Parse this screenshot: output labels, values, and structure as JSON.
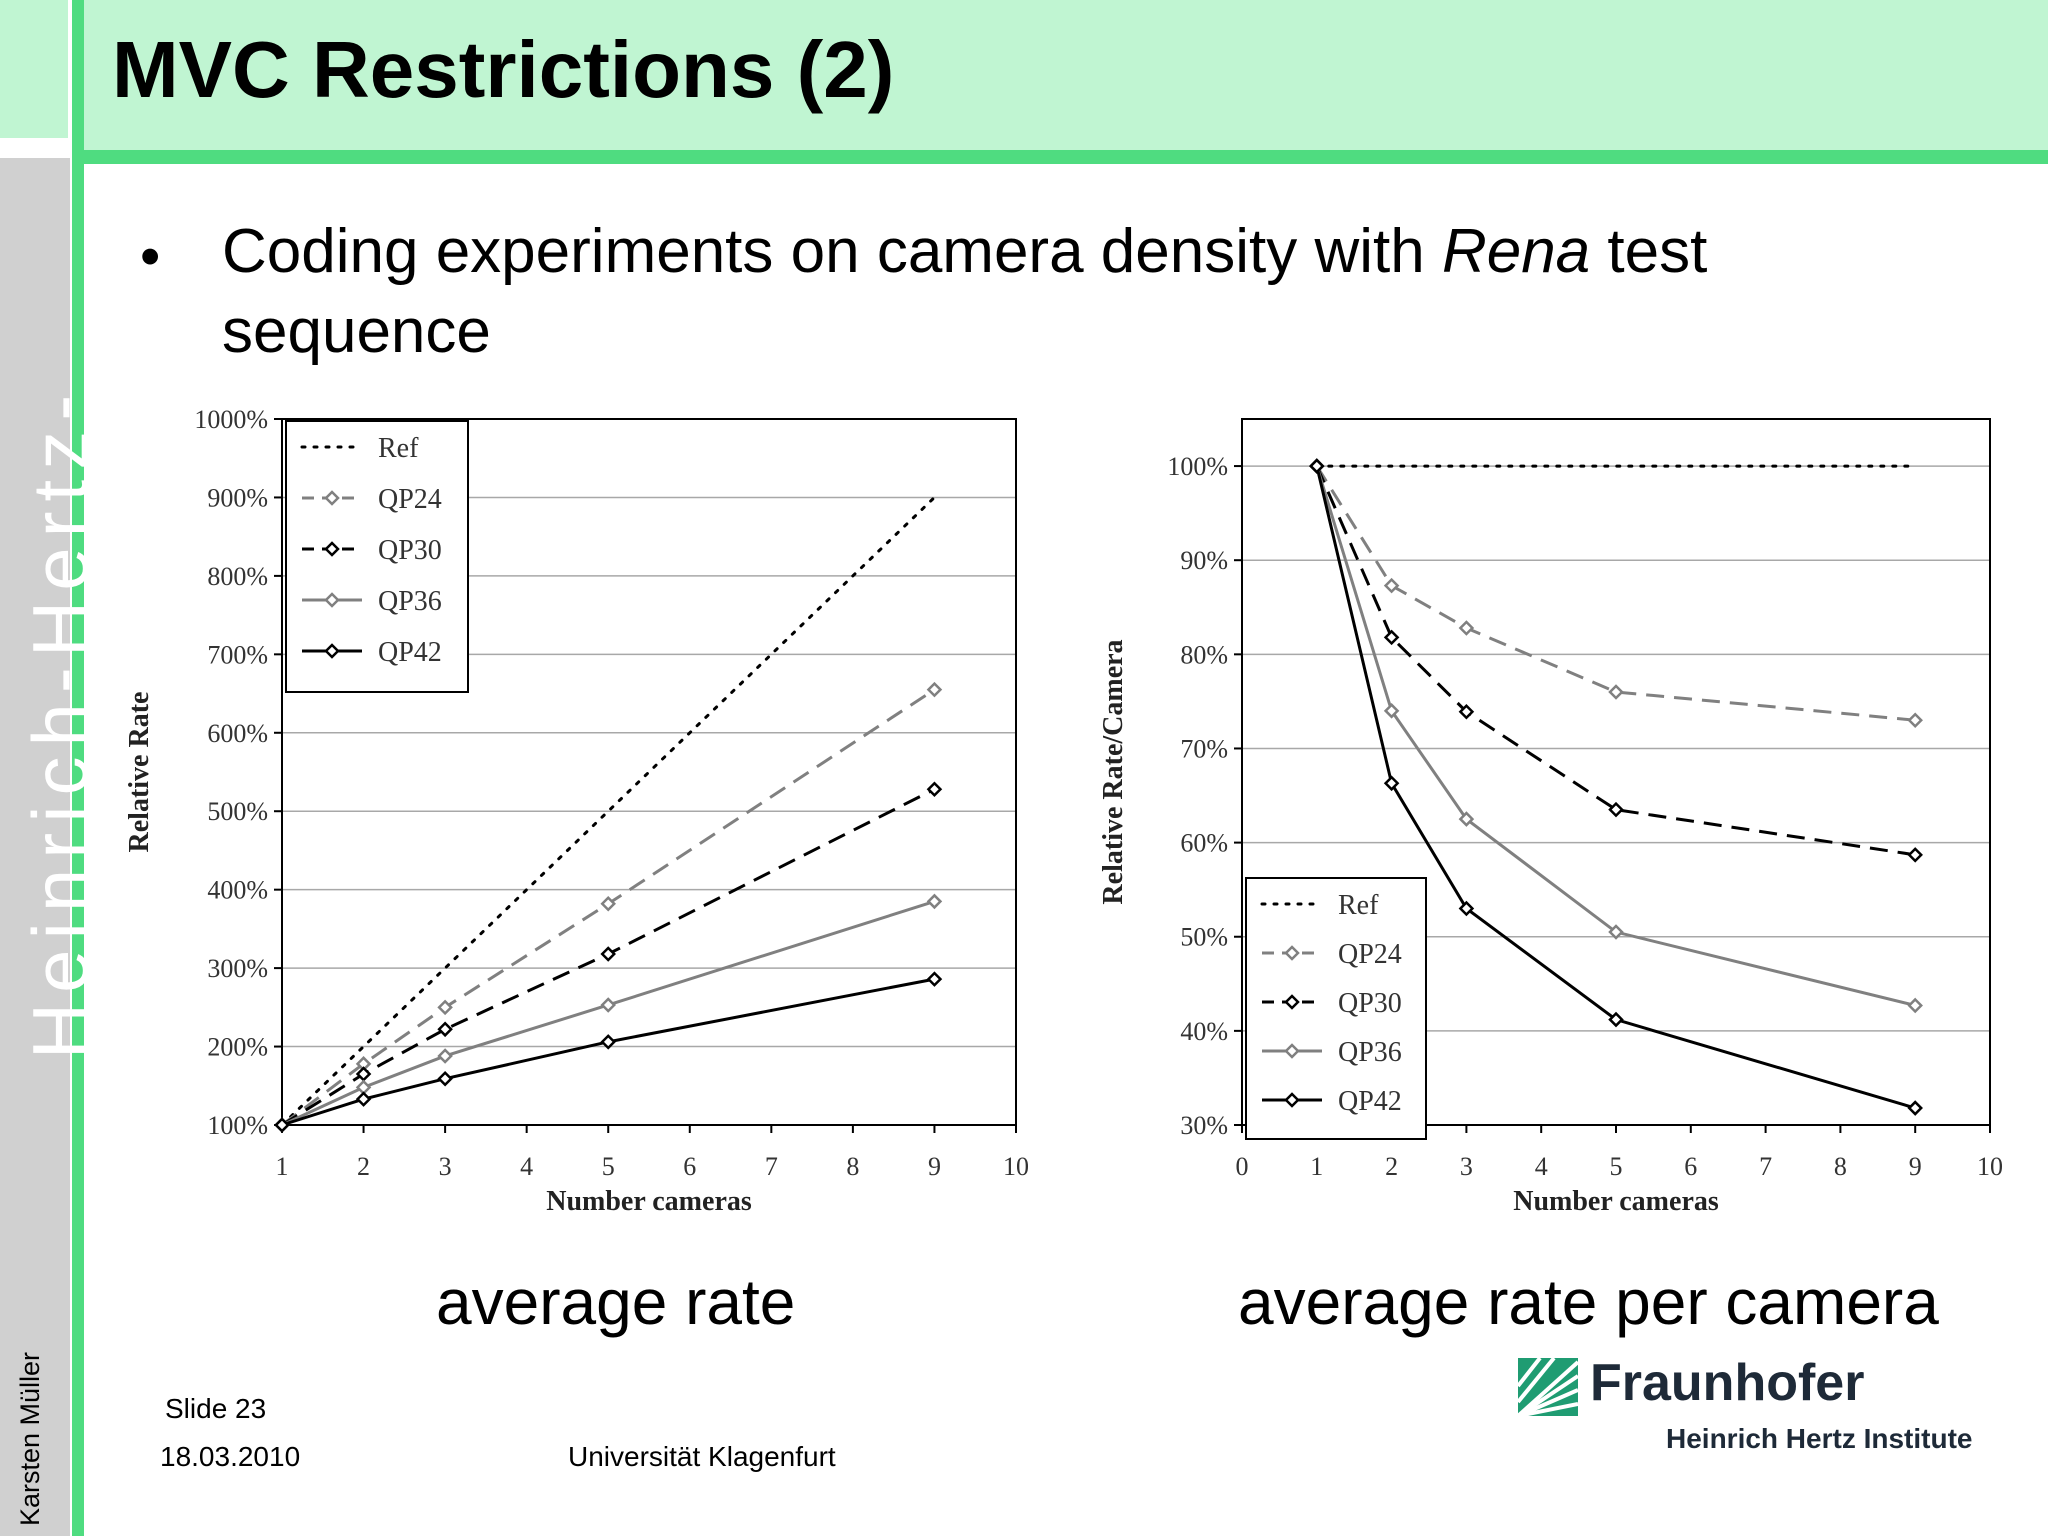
{
  "slide": {
    "title": "MVC Restrictions (2)",
    "bullet_text_before": "Coding experiments on camera density with ",
    "bullet_text_italic": "Rena",
    "bullet_text_after": " test sequence",
    "caption_left": "average rate",
    "caption_right": "average rate per camera",
    "sidebar_institute": "Heinrich-Hertz-Institut",
    "sidebar_author": "Karsten Müller",
    "footer": {
      "slide_number": "Slide 23",
      "date": "18.03.2010",
      "university": "Universität Klagenfurt"
    },
    "logo": {
      "name": "Fraunhofer",
      "subtitle": "Heinrich Hertz Institute"
    }
  },
  "chart_data": [
    {
      "type": "line",
      "title": "",
      "xlabel": "Number cameras",
      "ylabel": "Relative Rate",
      "xlim": [
        1,
        10
      ],
      "ylim": [
        100,
        1000
      ],
      "xticks": [
        "1",
        "2",
        "3",
        "4",
        "5",
        "6",
        "7",
        "8",
        "9",
        "10"
      ],
      "yticks": [
        "100%",
        "200%",
        "300%",
        "400%",
        "500%",
        "600%",
        "700%",
        "800%",
        "900%",
        "1000%"
      ],
      "grid": true,
      "legend_position": "top-left",
      "x": [
        1,
        2,
        3,
        5,
        9
      ],
      "series": [
        {
          "name": "Ref",
          "values": [
            100,
            200,
            300,
            500,
            900
          ],
          "color": "#000000",
          "dash": "dotted",
          "markers": false
        },
        {
          "name": "QP24",
          "values": [
            100,
            178,
            250,
            382,
            655
          ],
          "color": "#808080",
          "dash": "dashed",
          "markers": true
        },
        {
          "name": "QP30",
          "values": [
            100,
            165,
            222,
            318,
            528
          ],
          "color": "#000000",
          "dash": "dashed",
          "markers": true
        },
        {
          "name": "QP36",
          "values": [
            100,
            148,
            188,
            253,
            385
          ],
          "color": "#808080",
          "dash": "solid",
          "markers": true
        },
        {
          "name": "QP42",
          "values": [
            100,
            133,
            159,
            206,
            286
          ],
          "color": "#000000",
          "dash": "solid",
          "markers": true
        }
      ]
    },
    {
      "type": "line",
      "title": "",
      "xlabel": "Number cameras",
      "ylabel": "Relative Rate/Camera",
      "xlim": [
        0,
        10
      ],
      "ylim": [
        30,
        105
      ],
      "xticks": [
        "0",
        "1",
        "2",
        "3",
        "4",
        "5",
        "6",
        "7",
        "8",
        "9",
        "10"
      ],
      "yticks": [
        "30%",
        "40%",
        "50%",
        "60%",
        "70%",
        "80%",
        "90%",
        "100%"
      ],
      "grid": true,
      "legend_position": "bottom-left",
      "x": [
        1,
        2,
        3,
        5,
        9
      ],
      "series": [
        {
          "name": "Ref",
          "values": [
            100,
            100,
            100,
            100,
            100
          ],
          "color": "#000000",
          "dash": "dotted",
          "markers": false
        },
        {
          "name": "QP24",
          "values": [
            100,
            87.3,
            82.8,
            76.0,
            73.0
          ],
          "color": "#808080",
          "dash": "dashed",
          "markers": true
        },
        {
          "name": "QP30",
          "values": [
            100,
            81.8,
            73.9,
            63.5,
            58.7
          ],
          "color": "#000000",
          "dash": "dashed",
          "markers": true
        },
        {
          "name": "QP36",
          "values": [
            100,
            74.0,
            62.5,
            50.5,
            42.7
          ],
          "color": "#808080",
          "dash": "solid",
          "markers": true
        },
        {
          "name": "QP42",
          "values": [
            100,
            66.3,
            53.0,
            41.2,
            31.8
          ],
          "color": "#000000",
          "dash": "solid",
          "markers": true
        }
      ]
    }
  ]
}
